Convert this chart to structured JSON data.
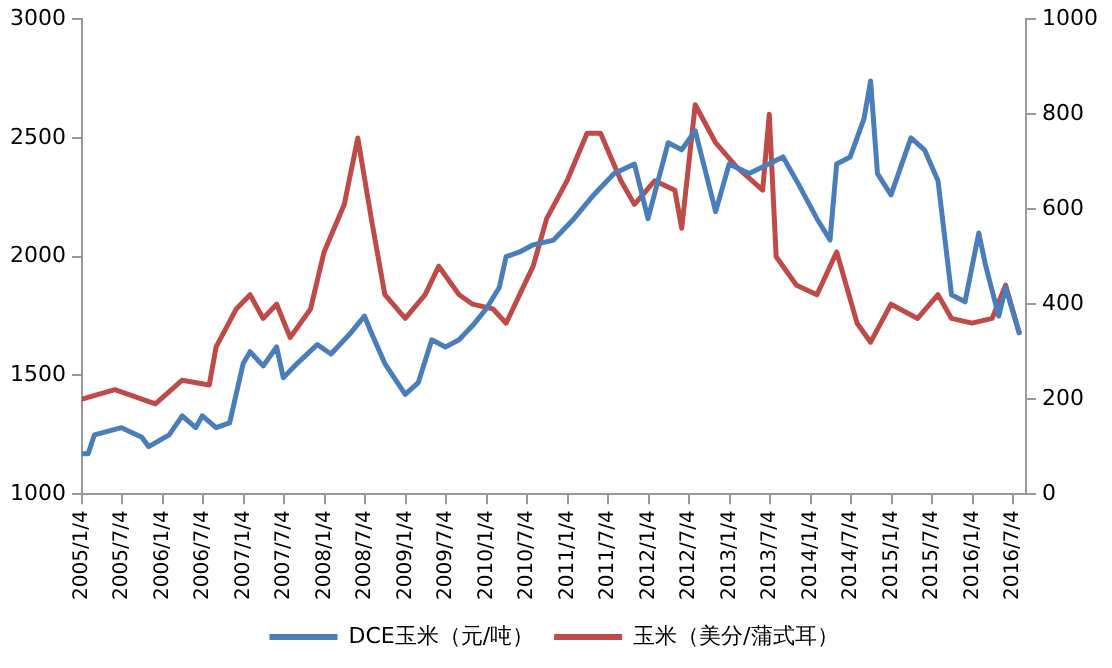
{
  "chart_data": {
    "type": "line",
    "grid": false,
    "legend": "bottom",
    "marker": "none",
    "line_style": "solid",
    "xlim": [
      "2005-01-04",
      "2016-09-01"
    ],
    "xticks": [
      {
        "value": "2005-01-04",
        "label": "2005/1/4"
      },
      {
        "value": "2005-07-04",
        "label": "2005/7/4"
      },
      {
        "value": "2006-01-04",
        "label": "2006/1/4"
      },
      {
        "value": "2006-07-04",
        "label": "2006/7/4"
      },
      {
        "value": "2007-01-04",
        "label": "2007/1/4"
      },
      {
        "value": "2007-07-04",
        "label": "2007/7/4"
      },
      {
        "value": "2008-01-04",
        "label": "2008/1/4"
      },
      {
        "value": "2008-07-04",
        "label": "2008/7/4"
      },
      {
        "value": "2009-01-04",
        "label": "2009/1/4"
      },
      {
        "value": "2009-07-04",
        "label": "2009/7/4"
      },
      {
        "value": "2010-01-04",
        "label": "2010/1/4"
      },
      {
        "value": "2010-07-04",
        "label": "2010/7/4"
      },
      {
        "value": "2011-01-04",
        "label": "2011/1/4"
      },
      {
        "value": "2011-07-04",
        "label": "2011/7/4"
      },
      {
        "value": "2012-01-04",
        "label": "2012/1/4"
      },
      {
        "value": "2012-07-04",
        "label": "2012/7/4"
      },
      {
        "value": "2013-01-04",
        "label": "2013/1/4"
      },
      {
        "value": "2013-07-04",
        "label": "2013/7/4"
      },
      {
        "value": "2014-01-04",
        "label": "2014/1/4"
      },
      {
        "value": "2014-07-04",
        "label": "2014/7/4"
      },
      {
        "value": "2015-01-04",
        "label": "2015/1/4"
      },
      {
        "value": "2015-07-04",
        "label": "2015/7/4"
      },
      {
        "value": "2016-01-04",
        "label": "2016/1/4"
      },
      {
        "value": "2016-07-04",
        "label": "2016/7/4"
      }
    ],
    "ylim": [
      1000,
      3000
    ],
    "yticks": [
      1000,
      1500,
      2000,
      2500,
      3000
    ],
    "y2lim": [
      0,
      1000
    ],
    "y2ticks": [
      0,
      200,
      400,
      600,
      800,
      1000
    ],
    "series": [
      {
        "name": "DCE玉米（元/吨）",
        "color": "#4a7ebb",
        "x": [
          "2005-01-04",
          "2005-02",
          "2005-03",
          "2005-07",
          "2005-10",
          "2005-11",
          "2006-02",
          "2006-04",
          "2006-06",
          "2006-07",
          "2006-09",
          "2006-11",
          "2007-01",
          "2007-02",
          "2007-04",
          "2007-06",
          "2007-07",
          "2007-09",
          "2007-12",
          "2008-02",
          "2008-05",
          "2008-07",
          "2008-08",
          "2008-10",
          "2009-01",
          "2009-03",
          "2009-05",
          "2009-07",
          "2009-09",
          "2009-11",
          "2010-01",
          "2010-03",
          "2010-04",
          "2010-06",
          "2010-08",
          "2010-11",
          "2011-02",
          "2011-05",
          "2011-08",
          "2011-11",
          "2012-01",
          "2012-04",
          "2012-06",
          "2012-08",
          "2012-11",
          "2013-01",
          "2013-04",
          "2013-09",
          "2013-11",
          "2014-02",
          "2014-04",
          "2014-05",
          "2014-07",
          "2014-09",
          "2014-10",
          "2014-11",
          "2015-01",
          "2015-04",
          "2015-06",
          "2015-08",
          "2015-10",
          "2015-12",
          "2016-02",
          "2016-03",
          "2016-05",
          "2016-06",
          "2016-08"
        ],
        "values": [
          1170,
          1170,
          1250,
          1280,
          1240,
          1200,
          1250,
          1330,
          1280,
          1330,
          1280,
          1300,
          1550,
          1600,
          1540,
          1620,
          1490,
          1550,
          1630,
          1590,
          1680,
          1750,
          1680,
          1550,
          1420,
          1470,
          1650,
          1620,
          1650,
          1710,
          1780,
          1870,
          2000,
          2020,
          2050,
          2070,
          2160,
          2260,
          2350,
          2390,
          2160,
          2480,
          2450,
          2530,
          2190,
          2390,
          2350,
          2420,
          2320,
          2160,
          2070,
          2390,
          2420,
          2580,
          2740,
          2350,
          2260,
          2500,
          2450,
          2320,
          1840,
          1810,
          2100,
          1970,
          1750,
          1870,
          1680
        ]
      },
      {
        "name": "玉米（美分/蒲式耳）",
        "color": "#be4b48",
        "axis": "y2",
        "x": [
          "2005-01-04",
          "2005-06",
          "2005-10",
          "2005-12",
          "2006-04",
          "2006-08",
          "2006-09",
          "2006-12",
          "2007-02",
          "2007-04",
          "2007-06",
          "2007-08",
          "2007-11",
          "2008-01",
          "2008-04",
          "2008-06",
          "2008-08",
          "2008-10",
          "2009-01",
          "2009-04",
          "2009-06",
          "2009-09",
          "2009-11",
          "2010-02",
          "2010-04",
          "2010-06",
          "2010-08",
          "2010-10",
          "2011-01",
          "2011-04",
          "2011-06",
          "2011-09",
          "2011-11",
          "2012-02",
          "2012-05",
          "2012-06",
          "2012-08",
          "2012-11",
          "2013-02",
          "2013-06",
          "2013-07",
          "2013-08",
          "2013-11",
          "2014-02",
          "2014-05",
          "2014-08",
          "2014-10",
          "2015-01",
          "2015-05",
          "2015-08",
          "2015-10",
          "2016-01",
          "2016-04",
          "2016-06",
          "2016-08"
        ],
        "values": [
          200,
          220,
          200,
          190,
          240,
          230,
          310,
          390,
          420,
          370,
          400,
          330,
          390,
          510,
          610,
          750,
          580,
          420,
          370,
          420,
          480,
          420,
          400,
          390,
          360,
          420,
          480,
          580,
          660,
          760,
          760,
          660,
          610,
          660,
          640,
          560,
          820,
          740,
          690,
          640,
          800,
          500,
          440,
          420,
          510,
          360,
          320,
          400,
          370,
          420,
          370,
          360,
          370,
          440,
          340
        ]
      }
    ]
  }
}
